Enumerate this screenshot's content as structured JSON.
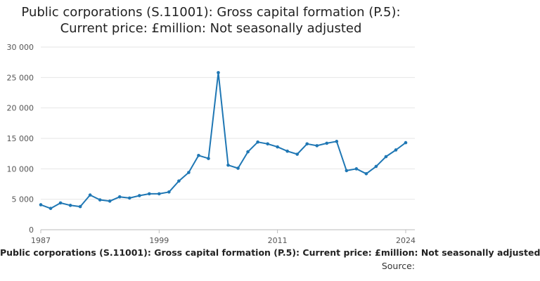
{
  "chart_data": {
    "type": "line",
    "title_lines": [
      "Public corporations (S.11001): Gross capital formation (P.5):",
      "Current price: £million: Not seasonally adjusted"
    ],
    "legend": {
      "series_name": "Public corporations (S.11001): Gross capital formation (P.5): Current price: £million: Not seasonally adjusted",
      "placement": "bottom"
    },
    "source_label": "Source:",
    "xlabel": "",
    "ylabel": "",
    "xlim": [
      1987,
      2024
    ],
    "ylim": [
      0,
      30000
    ],
    "x_ticks": [
      1987,
      1999,
      2011,
      2024
    ],
    "x_tick_labels": [
      "1987",
      "1999",
      "2011",
      "2024"
    ],
    "y_ticks": [
      0,
      5000,
      10000,
      15000,
      20000,
      25000,
      30000
    ],
    "y_tick_labels": [
      "0",
      "5 000",
      "10 000",
      "15 000",
      "20 000",
      "25 000",
      "30 000"
    ],
    "grid": "horizontal",
    "series_color": "#1f77b4",
    "series": [
      {
        "x": [
          1987,
          1988,
          1989,
          1990,
          1991,
          1992,
          1993,
          1994,
          1995,
          1996,
          1997,
          1998,
          1999,
          2000,
          2001,
          2002,
          2003,
          2004,
          2005,
          2006,
          2007,
          2008,
          2009,
          2010,
          2011,
          2012,
          2013,
          2014,
          2015,
          2016,
          2017,
          2018,
          2019,
          2020,
          2021,
          2022,
          2023,
          2024
        ],
        "values": [
          4100,
          3500,
          4400,
          4000,
          3800,
          5700,
          4900,
          4700,
          5400,
          5200,
          5600,
          5900,
          5900,
          6200,
          8000,
          9400,
          12200,
          11700,
          25800,
          10600,
          10100,
          12800,
          14400,
          14100,
          13600,
          12900,
          12400,
          14100,
          13800,
          14200,
          14500,
          9700,
          10000,
          9200,
          10400,
          12000,
          13100,
          14300
        ]
      }
    ]
  }
}
